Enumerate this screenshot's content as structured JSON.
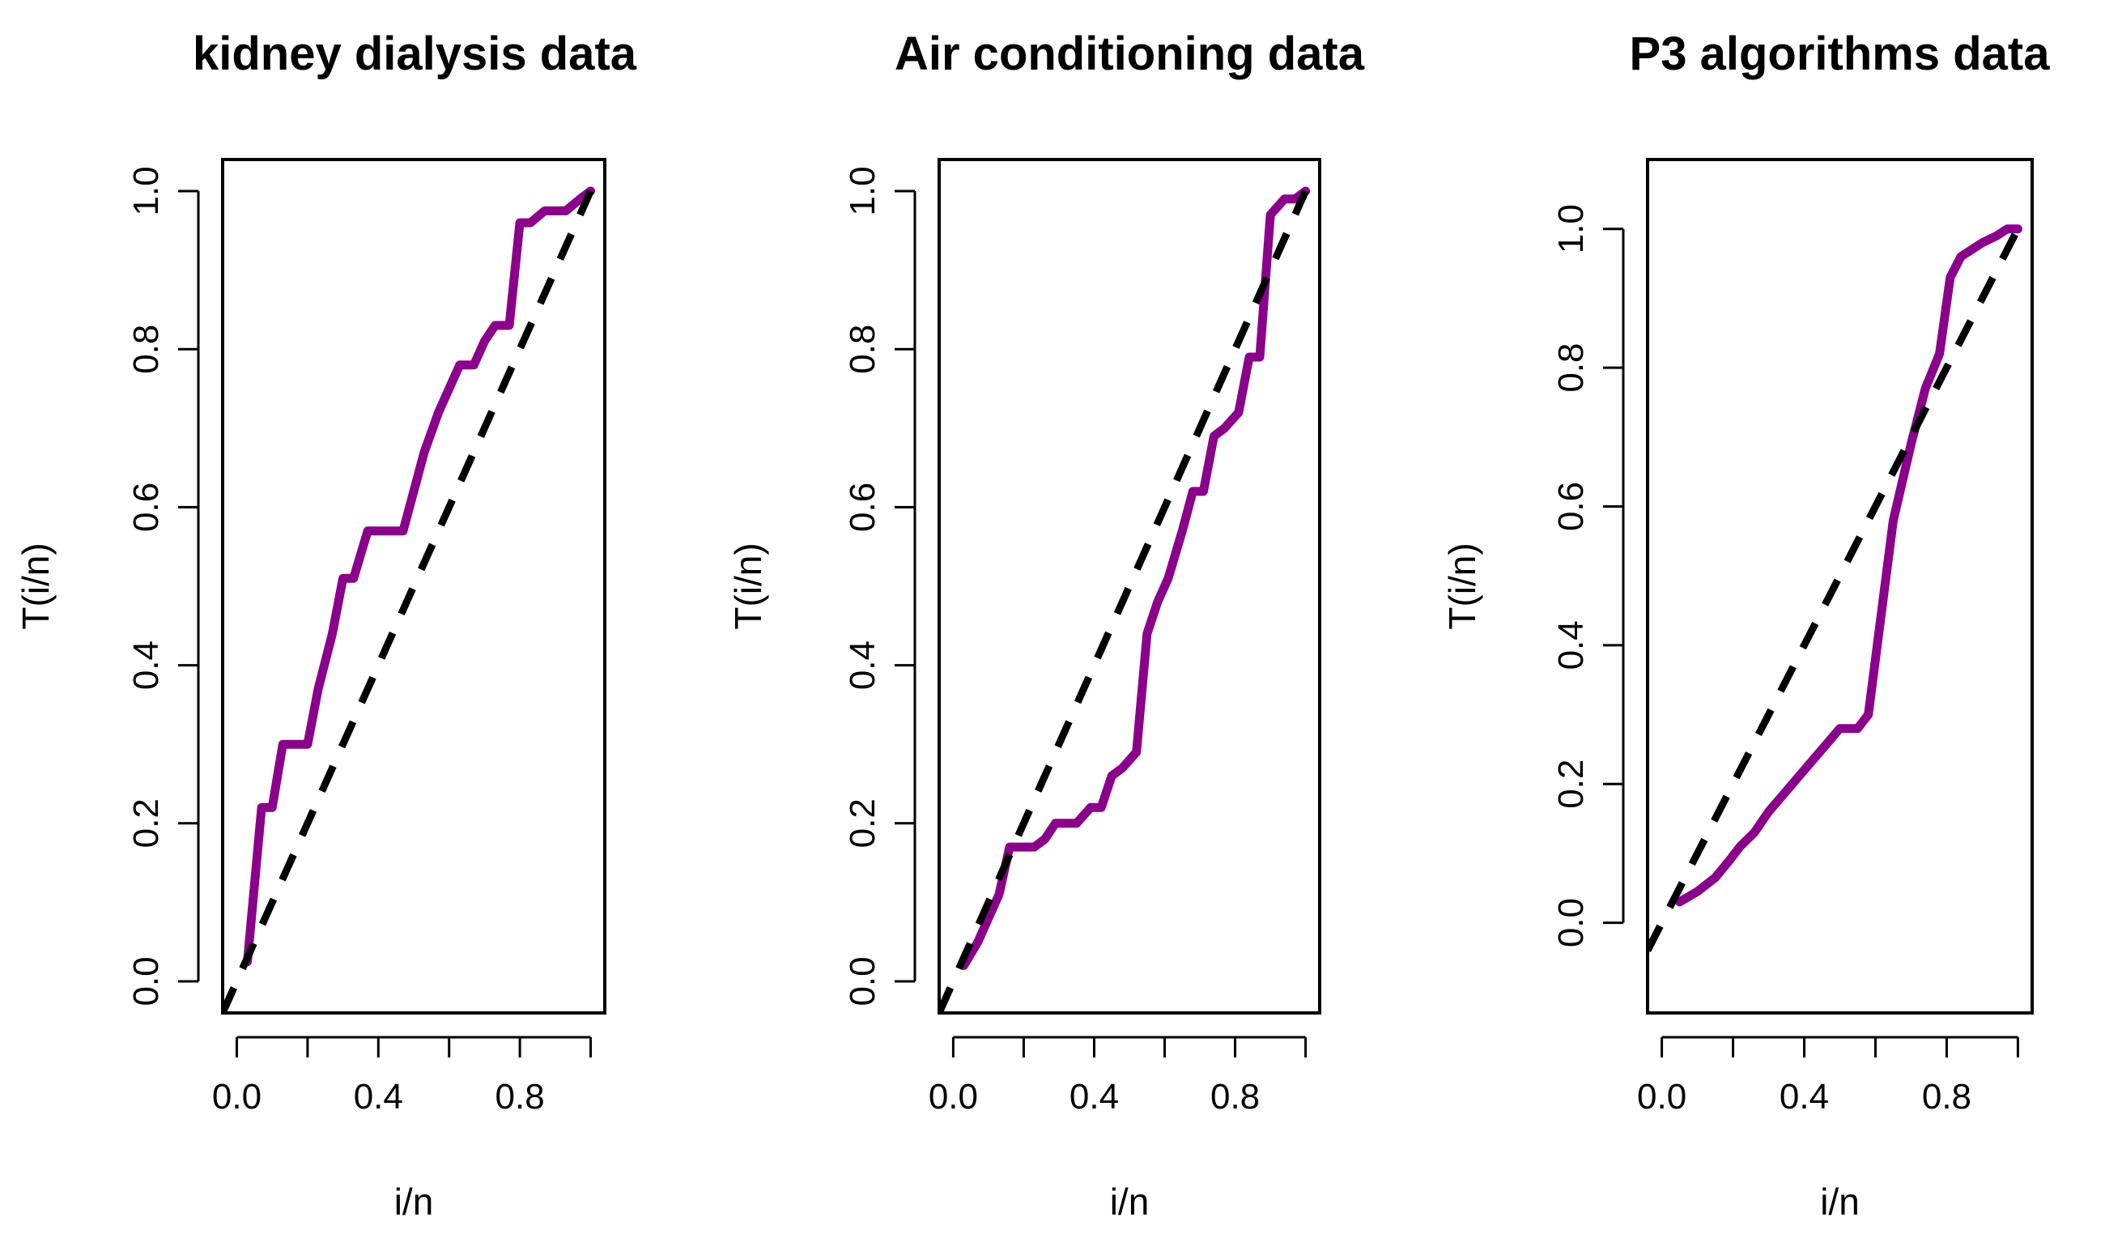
{
  "chart_data": [
    {
      "type": "line",
      "title": "kidney dialysis data",
      "xlabel": "i/n",
      "ylabel": "T(i/n)",
      "xlim": [
        -0.04,
        1.04
      ],
      "ylim": [
        -0.04,
        1.04
      ],
      "xticks": [
        "0.0",
        "0.4",
        "0.8"
      ],
      "yticks": [
        "0.0",
        "0.2",
        "0.4",
        "0.6",
        "0.8",
        "1.0"
      ],
      "grid": false,
      "series": [
        {
          "color": "#8B008B",
          "x": [
            0.03,
            0.07,
            0.1,
            0.13,
            0.2,
            0.23,
            0.27,
            0.3,
            0.33,
            0.37,
            0.4,
            0.43,
            0.47,
            0.5,
            0.53,
            0.57,
            0.6,
            0.63,
            0.67,
            0.7,
            0.73,
            0.77,
            0.8,
            0.83,
            0.87,
            0.9,
            0.93,
            0.97,
            1.0
          ],
          "y": [
            0.025,
            0.22,
            0.22,
            0.3,
            0.3,
            0.37,
            0.44,
            0.51,
            0.51,
            0.57,
            0.57,
            0.57,
            0.57,
            0.62,
            0.67,
            0.72,
            0.75,
            0.78,
            0.78,
            0.81,
            0.83,
            0.83,
            0.96,
            0.96,
            0.975,
            0.975,
            0.975,
            0.99,
            1.0
          ]
        },
        {
          "color": "#000000",
          "dash": true,
          "x": [
            -0.04,
            1.0
          ],
          "y": [
            -0.04,
            1.0
          ]
        }
      ]
    },
    {
      "type": "line",
      "title": "Air conditioning data",
      "xlabel": "i/n",
      "ylabel": "T(i/n)",
      "xlim": [
        -0.04,
        1.04
      ],
      "ylim": [
        -0.04,
        1.04
      ],
      "xticks": [
        "0.0",
        "0.4",
        "0.8"
      ],
      "yticks": [
        "0.0",
        "0.2",
        "0.4",
        "0.6",
        "0.8",
        "1.0"
      ],
      "grid": false,
      "series": [
        {
          "color": "#8B008B",
          "x": [
            0.03,
            0.07,
            0.1,
            0.13,
            0.16,
            0.19,
            0.23,
            0.26,
            0.29,
            0.32,
            0.35,
            0.39,
            0.42,
            0.45,
            0.48,
            0.52,
            0.55,
            0.58,
            0.61,
            0.65,
            0.68,
            0.71,
            0.74,
            0.77,
            0.81,
            0.84,
            0.87,
            0.9,
            0.94,
            0.97,
            1.0
          ],
          "y": [
            0.02,
            0.05,
            0.08,
            0.11,
            0.17,
            0.17,
            0.17,
            0.18,
            0.2,
            0.2,
            0.2,
            0.22,
            0.22,
            0.26,
            0.27,
            0.29,
            0.44,
            0.48,
            0.51,
            0.57,
            0.62,
            0.62,
            0.69,
            0.7,
            0.72,
            0.79,
            0.79,
            0.97,
            0.99,
            0.99,
            1.0
          ]
        },
        {
          "color": "#000000",
          "dash": true,
          "x": [
            -0.04,
            1.0
          ],
          "y": [
            -0.04,
            1.0
          ]
        }
      ]
    },
    {
      "type": "line",
      "title": "P3 algorithms data",
      "xlabel": "i/n",
      "ylabel": "T(i/n)",
      "xlim": [
        -0.04,
        1.04
      ],
      "ylim": [
        -0.13,
        1.1
      ],
      "xticks": [
        "0.0",
        "0.4",
        "0.8"
      ],
      "yticks": [
        "0.0",
        "0.2",
        "0.4",
        "0.6",
        "0.8",
        "1.0"
      ],
      "grid": false,
      "series": [
        {
          "color": "#8B008B",
          "x": [
            0.05,
            0.1,
            0.15,
            0.19,
            0.22,
            0.26,
            0.3,
            0.35,
            0.4,
            0.45,
            0.5,
            0.55,
            0.58,
            0.61,
            0.65,
            0.7,
            0.74,
            0.78,
            0.81,
            0.84,
            0.87,
            0.9,
            0.94,
            0.97,
            1.0
          ],
          "y": [
            0.03,
            0.045,
            0.065,
            0.09,
            0.11,
            0.13,
            0.16,
            0.19,
            0.22,
            0.25,
            0.28,
            0.28,
            0.3,
            0.42,
            0.58,
            0.69,
            0.77,
            0.82,
            0.93,
            0.96,
            0.97,
            0.98,
            0.99,
            1.0,
            1.0
          ]
        },
        {
          "color": "#000000",
          "dash": true,
          "x": [
            -0.04,
            1.0
          ],
          "y": [
            -0.04,
            1.0
          ]
        }
      ]
    }
  ]
}
